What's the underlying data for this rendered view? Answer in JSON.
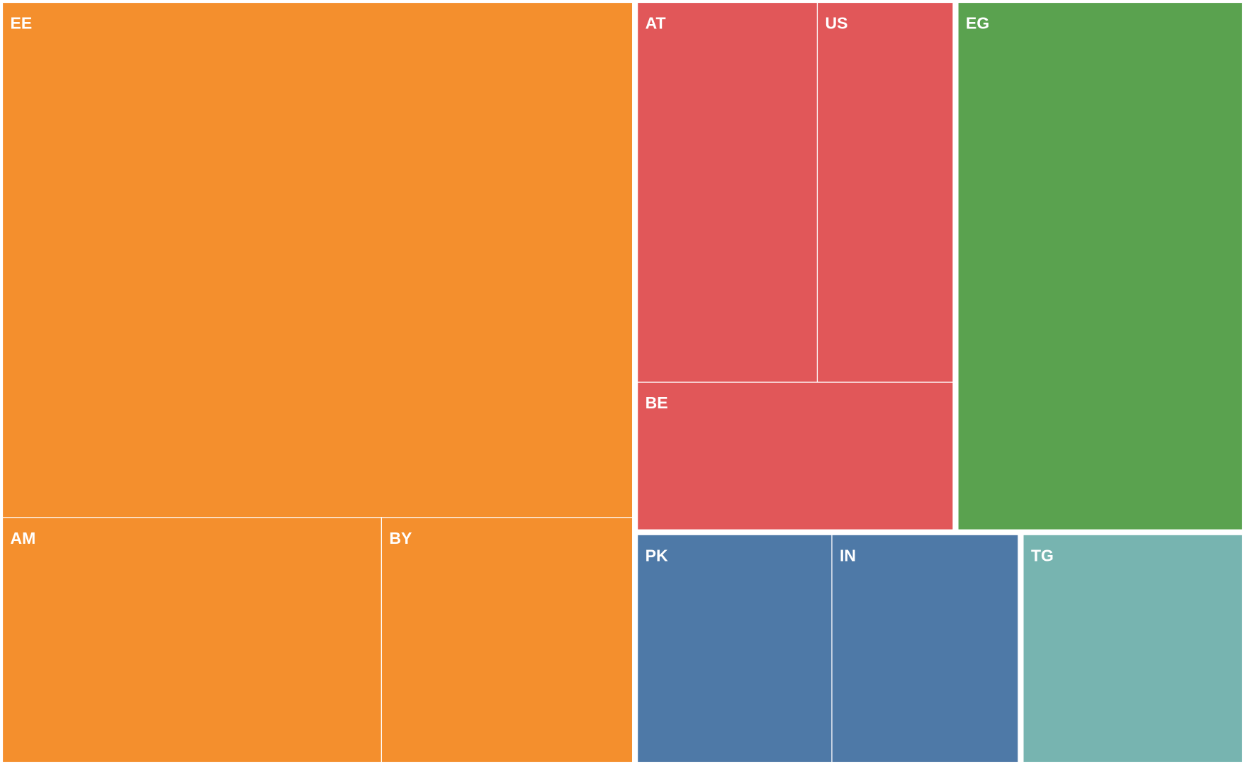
{
  "chart_data": {
    "type": "treemap",
    "groups": [
      {
        "color": "#f48f2d",
        "labels": [
          "EE",
          "AM",
          "BY"
        ],
        "values": [
          517,
          148,
          98
        ]
      },
      {
        "color": "#e15759",
        "labels": [
          "AT",
          "US",
          "BE"
        ],
        "values": [
          110,
          83,
          75
        ]
      },
      {
        "color": "#5aa24f",
        "labels": [
          "EG"
        ],
        "values": [
          242
        ]
      },
      {
        "color": "#4e79a7",
        "labels": [
          "PK",
          "IN"
        ],
        "values": [
          72,
          69
        ]
      },
      {
        "color": "#77b4b0",
        "labels": [
          "TG"
        ],
        "values": [
          82
        ]
      }
    ]
  }
}
